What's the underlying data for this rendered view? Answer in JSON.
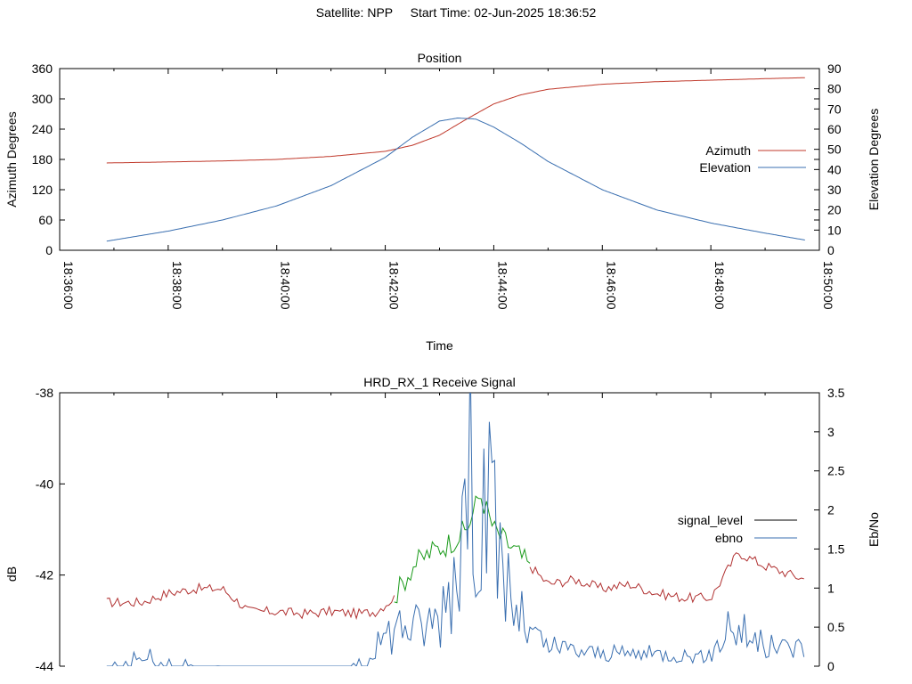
{
  "header": {
    "satellite": "Satellite: NPP",
    "start_time": "Start Time: 02-Jun-2025 18:36:52"
  },
  "chart_data": [
    {
      "type": "line",
      "title": "Position",
      "xlabel": "Time",
      "ylabel": "Azimuth Degrees",
      "y2label": "Elevation Degrees",
      "x_ticks": [
        "18:36:00",
        "18:38:00",
        "18:40:00",
        "18:42:00",
        "18:44:00",
        "18:46:00",
        "18:48:00",
        "18:50:00"
      ],
      "x_range": [
        "18:36:00",
        "18:50:00"
      ],
      "ylim": [
        0,
        360
      ],
      "y_ticks": [
        0,
        60,
        120,
        180,
        240,
        300,
        360
      ],
      "y2lim": [
        0,
        90
      ],
      "y2_ticks": [
        0,
        10,
        20,
        30,
        40,
        50,
        60,
        70,
        80,
        90
      ],
      "grid": false,
      "legend_position": "right",
      "series": [
        {
          "name": "Azimuth",
          "axis": "left",
          "color": "#c0392b",
          "x": [
            "18:36:52",
            "18:38:00",
            "18:39:00",
            "18:40:00",
            "18:41:00",
            "18:42:00",
            "18:42:30",
            "18:43:00",
            "18:43:30",
            "18:44:00",
            "18:44:30",
            "18:45:00",
            "18:46:00",
            "18:47:00",
            "18:48:00",
            "18:49:00",
            "18:49:45"
          ],
          "values": [
            173,
            175,
            177,
            180,
            186,
            196,
            208,
            228,
            260,
            290,
            308,
            319,
            329,
            334,
            337,
            340,
            342
          ]
        },
        {
          "name": "Elevation",
          "axis": "right",
          "color": "#3a6fb0",
          "x": [
            "18:36:52",
            "18:38:00",
            "18:39:00",
            "18:40:00",
            "18:41:00",
            "18:42:00",
            "18:42:30",
            "18:43:00",
            "18:43:20",
            "18:43:40",
            "18:44:00",
            "18:44:30",
            "18:45:00",
            "18:46:00",
            "18:47:00",
            "18:48:00",
            "18:49:00",
            "18:49:45"
          ],
          "values": [
            4.5,
            9.5,
            15,
            22,
            32,
            46,
            56,
            64,
            65.5,
            65,
            61,
            53,
            44,
            30,
            20,
            13.5,
            8.5,
            5
          ]
        }
      ]
    },
    {
      "type": "line",
      "title": "HRD_RX_1 Receive Signal",
      "ylabel": "dB",
      "y2label": "Eb/No",
      "ylim": [
        -44,
        -38
      ],
      "y_ticks": [
        -38,
        -40,
        -42,
        -44
      ],
      "y2lim": [
        0,
        3.5
      ],
      "y2_ticks": [
        0,
        0.5,
        1,
        1.5,
        2,
        2.5,
        3,
        3.5
      ],
      "grid": false,
      "legend_position": "right",
      "series": [
        {
          "name": "signal_level",
          "axis": "left",
          "x": [
            "18:36:52",
            "18:37:30",
            "18:38:00",
            "18:38:30",
            "18:39:00",
            "18:39:30",
            "18:40:00",
            "18:40:30",
            "18:41:00",
            "18:41:30",
            "18:41:50",
            "18:42:10",
            "18:42:30",
            "18:42:50",
            "18:43:10",
            "18:43:30",
            "18:43:45",
            "18:44:00",
            "18:44:20",
            "18:44:40",
            "18:45:00",
            "18:45:30",
            "18:46:00",
            "18:46:30",
            "18:47:00",
            "18:47:30",
            "18:48:00",
            "18:48:30",
            "18:49:00",
            "18:49:30",
            "18:49:45"
          ],
          "values": [
            -42.6,
            -42.6,
            -42.4,
            -42.3,
            -42.3,
            -42.8,
            -42.8,
            -42.85,
            -42.8,
            -42.85,
            -42.8,
            -42.5,
            -41.8,
            -41.5,
            -41.3,
            -41.0,
            -40.2,
            -41.0,
            -41.4,
            -41.8,
            -42.2,
            -42.1,
            -42.3,
            -42.2,
            -42.4,
            -42.5,
            -42.5,
            -41.5,
            -41.8,
            -42.0,
            -42.1
          ],
          "color_bands": [
            {
              "from": "18:36:52",
              "to": "18:42:10",
              "color": "#b03030"
            },
            {
              "from": "18:42:10",
              "to": "18:44:40",
              "color": "#1a9a1a"
            },
            {
              "from": "18:44:40",
              "to": "18:49:45",
              "color": "#b03030"
            }
          ]
        },
        {
          "name": "ebno",
          "axis": "right",
          "color": "#3a6fb0",
          "x": [
            "18:36:52",
            "18:37:30",
            "18:38:00",
            "18:39:00",
            "18:40:00",
            "18:41:00",
            "18:41:40",
            "18:42:00",
            "18:42:20",
            "18:42:40",
            "18:43:00",
            "18:43:15",
            "18:43:30",
            "18:43:40",
            "18:43:50",
            "18:44:00",
            "18:44:20",
            "18:44:40",
            "18:45:00",
            "18:46:00",
            "18:47:00",
            "18:48:00",
            "18:48:20",
            "18:48:40",
            "18:49:00",
            "18:49:45"
          ],
          "values": [
            0,
            0.2,
            0.1,
            0,
            0,
            0,
            0.1,
            0.5,
            0.7,
            0.6,
            0.8,
            1.6,
            2.7,
            3.5,
            2.6,
            2.2,
            1.0,
            0.5,
            0.3,
            0.2,
            0.2,
            0.15,
            0.7,
            0.5,
            0.3,
            0.3
          ]
        }
      ]
    }
  ]
}
